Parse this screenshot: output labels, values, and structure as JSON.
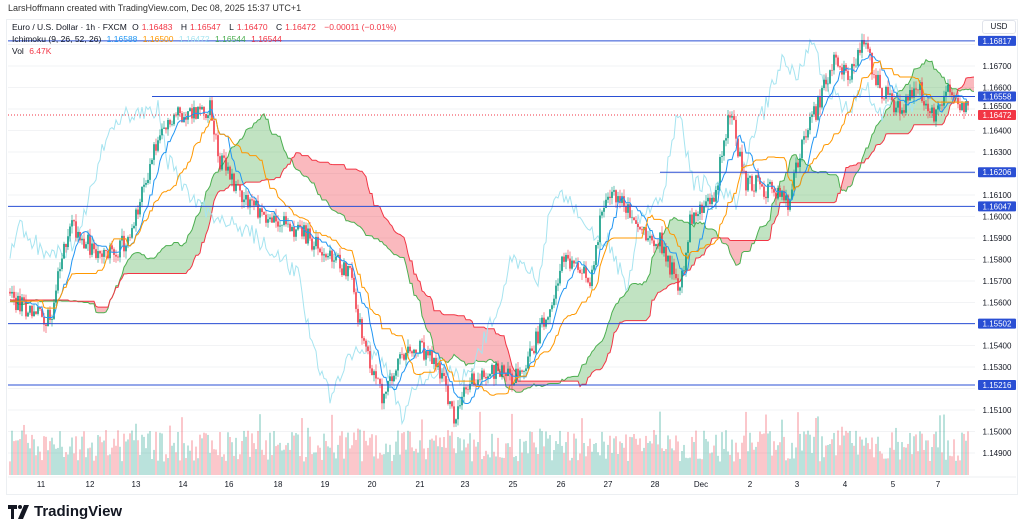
{
  "credit": "LarsHoffmann created with TradingView.com, Dec 08, 2025 15:37 UTC+1",
  "legend": {
    "symbol": "Euro / U.S. Dollar · 1h · FXCM",
    "o_label": "O",
    "o": "1.16483",
    "h_label": "H",
    "h": "1.16547",
    "l_label": "L",
    "l": "1.16470",
    "c_label": "C",
    "c": "1.16472",
    "change": "−0.00011 (−0.01%)",
    "ichimoku_label": "Ichimoku (9, 26, 52, 26)",
    "ichimoku_values": [
      "1.16588",
      "1.16500",
      "1.16472",
      "1.16544",
      "1.16544"
    ],
    "vol_label": "Vol",
    "vol": "6.47K"
  },
  "currency": "USD",
  "colors": {
    "up": "#089981",
    "down": "#f23645",
    "tenkan": "#2196f3",
    "kijun": "#ff9800",
    "chikou": "#a6e4f0",
    "spanA": "#4caf50",
    "spanB": "#f23645",
    "level": "#2a4fd4"
  },
  "price_ticks": [
    "1.16700",
    "1.16600",
    "1.16500",
    "1.16400",
    "1.16300",
    "1.16100",
    "1.16000",
    "1.15900",
    "1.15800",
    "1.15700",
    "1.15600",
    "1.15400",
    "1.15300",
    "1.15100",
    "1.15000",
    "1.14900"
  ],
  "levels": [
    "1.16817",
    "1.16558",
    "1.16206",
    "1.16047",
    "1.15502",
    "1.15216"
  ],
  "last_price": "1.16472",
  "time_labels": [
    "11",
    "12",
    "13",
    "14",
    "16",
    "18",
    "19",
    "20",
    "21",
    "23",
    "25",
    "26",
    "27",
    "28",
    "Dec",
    "2",
    "3",
    "4",
    "5",
    "7"
  ],
  "price_path": [
    [
      0,
      1.1561
    ],
    [
      10,
      1.1557
    ],
    [
      20,
      1.1552
    ],
    [
      30,
      1.1598
    ],
    [
      45,
      1.158
    ],
    [
      60,
      1.1589
    ],
    [
      72,
      1.1631
    ],
    [
      82,
      1.1647
    ],
    [
      100,
      1.165
    ],
    [
      105,
      1.1626
    ],
    [
      115,
      1.1612
    ],
    [
      130,
      1.1598
    ],
    [
      145,
      1.1594
    ],
    [
      160,
      1.158
    ],
    [
      170,
      1.1575
    ],
    [
      177,
      1.1538
    ],
    [
      187,
      1.1515
    ],
    [
      195,
      1.1533
    ],
    [
      205,
      1.1538
    ],
    [
      215,
      1.1529
    ],
    [
      222,
      1.1505
    ],
    [
      230,
      1.1524
    ],
    [
      245,
      1.1529
    ],
    [
      255,
      1.1524
    ],
    [
      267,
      1.1552
    ],
    [
      277,
      1.158
    ],
    [
      290,
      1.157
    ],
    [
      295,
      1.1598
    ],
    [
      302,
      1.1612
    ],
    [
      315,
      1.1594
    ],
    [
      325,
      1.1589
    ],
    [
      335,
      1.1566
    ],
    [
      340,
      1.1598
    ],
    [
      352,
      1.1608
    ],
    [
      360,
      1.165
    ],
    [
      367,
      1.1617
    ],
    [
      380,
      1.1612
    ],
    [
      390,
      1.1606
    ],
    [
      395,
      1.1631
    ],
    [
      405,
      1.1654
    ],
    [
      412,
      1.1673
    ],
    [
      420,
      1.1666
    ],
    [
      427,
      1.168
    ],
    [
      435,
      1.1659
    ],
    [
      445,
      1.165
    ],
    [
      455,
      1.1659
    ],
    [
      462,
      1.1645
    ],
    [
      470,
      1.1659
    ],
    [
      480,
      1.1647
    ]
  ]
}
